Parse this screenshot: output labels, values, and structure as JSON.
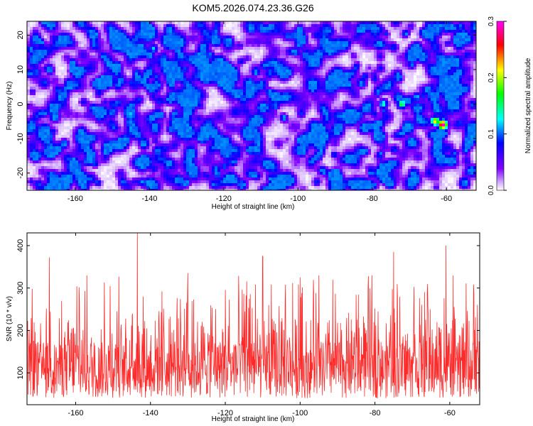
{
  "title": "KOM5.2026.074.23.36.G26",
  "chart_data": [
    {
      "type": "heatmap",
      "title": "KOM5.2026.074.23.36.G26",
      "xlabel": "Height of straight line (km)",
      "ylabel": "Frequency (Hz)",
      "xlim": [
        -173,
        -52
      ],
      "ylim": [
        -25,
        24
      ],
      "x_ticks": [
        -160,
        -140,
        -120,
        -100,
        -80,
        -60
      ],
      "y_ticks": [
        -20,
        -10,
        0,
        10,
        20
      ],
      "colorbar": {
        "label": "Normalized spectral amplitude",
        "range": [
          0.0,
          0.3
        ],
        "ticks": [
          0.0,
          0.1,
          0.2,
          0.3
        ],
        "colormap": [
          "#ffffff",
          "#7f00ff",
          "#0000ff",
          "#00ffff",
          "#00ff00",
          "#ffff00",
          "#ff0000",
          "#ff00ff"
        ]
      },
      "hotspots": [
        {
          "x": -61,
          "y": -6,
          "value": 0.3
        },
        {
          "x": -63,
          "y": -5,
          "value": 0.22
        },
        {
          "x": -72,
          "y": 0,
          "value": 0.17
        },
        {
          "x": -77,
          "y": 0,
          "value": 0.14
        },
        {
          "x": -68,
          "y": 2,
          "value": 0.12
        },
        {
          "x": -145,
          "y": -3,
          "value": 0.12
        },
        {
          "x": -139,
          "y": 16,
          "value": 0.12
        },
        {
          "x": -92,
          "y": 5,
          "value": 0.11
        },
        {
          "x": -150,
          "y": 0,
          "value": 0.1
        },
        {
          "x": -57,
          "y": 4,
          "value": 0.1
        }
      ]
    },
    {
      "type": "line",
      "xlabel": "Height of straight line (km)",
      "ylabel": "SNR (10 * v/v)",
      "xlim": [
        -173,
        -52
      ],
      "ylim": [
        25,
        430
      ],
      "x_ticks": [
        -160,
        -140,
        -120,
        -100,
        -80,
        -60
      ],
      "y_ticks": [
        100,
        200,
        300,
        400
      ],
      "color": "#ff2a2a",
      "typical_range": [
        40,
        230
      ],
      "peaks": [
        {
          "x": -143.5,
          "y": 430
        },
        {
          "x": -110,
          "y": 375
        },
        {
          "x": -167,
          "y": 372
        },
        {
          "x": -61,
          "y": 400
        },
        {
          "x": -75,
          "y": 385
        },
        {
          "x": -130,
          "y": 335
        },
        {
          "x": -95,
          "y": 330
        },
        {
          "x": -157,
          "y": 330
        },
        {
          "x": -100,
          "y": 325
        }
      ]
    }
  ]
}
